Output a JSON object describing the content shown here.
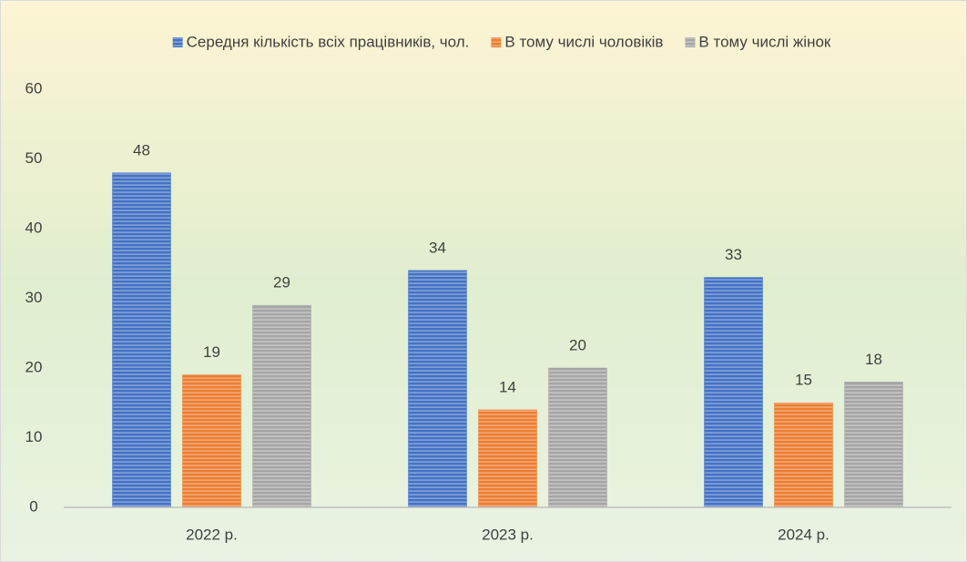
{
  "chart_data": {
    "type": "bar",
    "categories": [
      "2022 р.",
      "2023 р.",
      "2024 р."
    ],
    "series": [
      {
        "name": "Середня кількість всіх працівників, чол.",
        "color": "#4472c4",
        "values": [
          48,
          34,
          33
        ]
      },
      {
        "name": "В тому числі чоловіків",
        "color": "#ed7d31",
        "values": [
          19,
          14,
          15
        ]
      },
      {
        "name": "В тому числі жінок",
        "color": "#a5a5a5",
        "values": [
          29,
          20,
          18
        ]
      }
    ],
    "ylim": [
      0,
      60
    ],
    "yticks": [
      0,
      10,
      20,
      30,
      40,
      50,
      60
    ],
    "grid": false,
    "legend": "top"
  }
}
